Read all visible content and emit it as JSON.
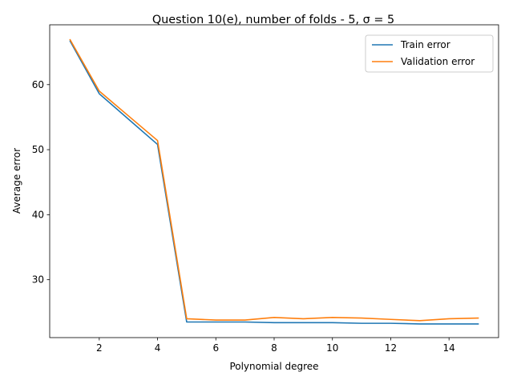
{
  "chart_data": {
    "type": "line",
    "title": "Question 10(e), number of folds - 5, σ = 5",
    "xlabel": "Polynomial degree",
    "ylabel": "Average error",
    "xlim": [
      0.3,
      15.7
    ],
    "ylim": [
      21.1,
      69.2
    ],
    "x_ticks": [
      2,
      4,
      6,
      8,
      10,
      12,
      14
    ],
    "y_ticks": [
      30,
      40,
      50,
      60
    ],
    "grid": false,
    "legend_position": "top-right",
    "x": [
      1,
      2,
      3,
      4,
      5,
      6,
      7,
      8,
      9,
      10,
      11,
      12,
      13,
      14,
      15
    ],
    "series": [
      {
        "name": "Train error",
        "color": "#1f77b4",
        "values": [
          66.7,
          58.6,
          54.7,
          50.8,
          23.5,
          23.5,
          23.5,
          23.4,
          23.4,
          23.4,
          23.3,
          23.3,
          23.2,
          23.2,
          23.2
        ]
      },
      {
        "name": "Validation error",
        "color": "#ff7f0e",
        "values": [
          66.9,
          59.0,
          55.2,
          51.4,
          24.0,
          23.8,
          23.8,
          24.2,
          24.0,
          24.2,
          24.1,
          23.9,
          23.7,
          24.0,
          24.1
        ]
      }
    ]
  }
}
